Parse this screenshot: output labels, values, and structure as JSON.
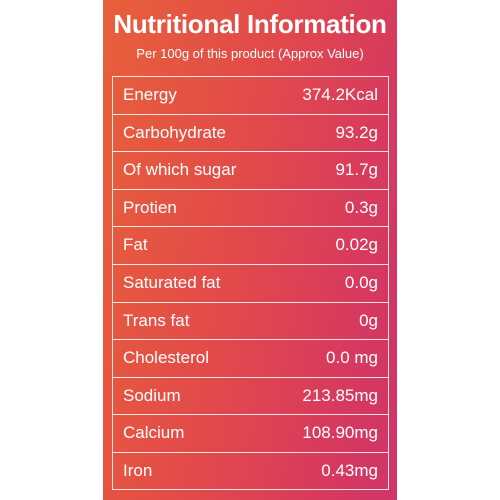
{
  "label": {
    "title": "Nutritional Information",
    "subtitle": "Per 100g of this product (Approx Value)",
    "rows": [
      {
        "name": "Energy",
        "value": "374.2Kcal"
      },
      {
        "name": "Carbohydrate",
        "value": "93.2g"
      },
      {
        "name": "Of which sugar",
        "value": "91.7g"
      },
      {
        "name": "Protien",
        "value": "0.3g"
      },
      {
        "name": "Fat",
        "value": "0.02g"
      },
      {
        "name": "Saturated fat",
        "value": "0.0g"
      },
      {
        "name": "Trans fat",
        "value": "0g"
      },
      {
        "name": "Cholesterol",
        "value": "0.0 mg"
      },
      {
        "name": "Sodium",
        "value": "213.85mg"
      },
      {
        "name": "Calcium",
        "value": "108.90mg"
      },
      {
        "name": "Iron",
        "value": "0.43mg"
      }
    ]
  }
}
